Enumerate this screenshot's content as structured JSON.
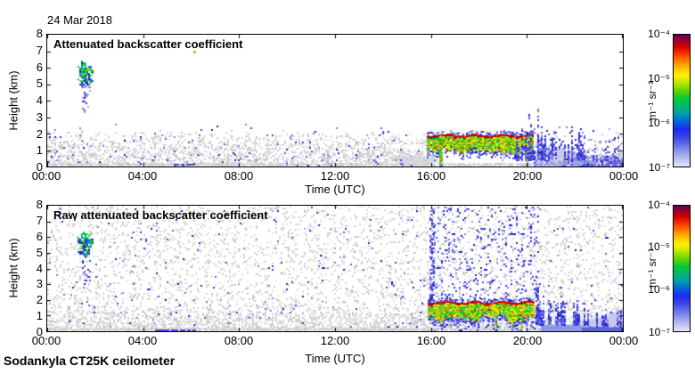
{
  "figure": {
    "date": "24 Mar 2018",
    "footer": "Sodankyla CT25K ceilometer",
    "background": "#ffffff"
  },
  "chart_data": {
    "type": "heatmap",
    "instrument": "Sodankyla CT25K ceilometer",
    "date": "24 Mar 2018",
    "x": {
      "label": "Time (UTC)",
      "ticks": [
        "00:00",
        "04:00",
        "08:00",
        "12:00",
        "16:00",
        "20:00",
        "00:00"
      ],
      "hours": [
        0,
        4,
        8,
        12,
        16,
        20,
        24
      ],
      "lim_hours": [
        0,
        24
      ]
    },
    "y": {
      "label": "Height (km)",
      "ticks": [
        0,
        1,
        2,
        3,
        4,
        5,
        6,
        7,
        8
      ],
      "lim": [
        0,
        8
      ]
    },
    "colorbar": {
      "unit": "m⁻¹ sr⁻¹",
      "ticks": [
        "10⁻⁴",
        "10⁻⁵",
        "10⁻⁶",
        "10⁻⁷"
      ],
      "scale": "log",
      "range": [
        1e-07,
        0.0001
      ],
      "gradient": [
        {
          "p": 0,
          "c": "#5a005a"
        },
        {
          "p": 4,
          "c": "#960032"
        },
        {
          "p": 9,
          "c": "#d20000"
        },
        {
          "p": 15,
          "c": "#ff3c00"
        },
        {
          "p": 21,
          "c": "#ff8c00"
        },
        {
          "p": 26,
          "c": "#ffc800"
        },
        {
          "p": 31,
          "c": "#fff000"
        },
        {
          "p": 37,
          "c": "#b4e600"
        },
        {
          "p": 43,
          "c": "#5ad200"
        },
        {
          "p": 49,
          "c": "#00c83c"
        },
        {
          "p": 55,
          "c": "#00b478"
        },
        {
          "p": 60,
          "c": "#00a0aa"
        },
        {
          "p": 66,
          "c": "#0064dc"
        },
        {
          "p": 72,
          "c": "#1e28f0"
        },
        {
          "p": 78,
          "c": "#3c46e6"
        },
        {
          "p": 85,
          "c": "#6e7de8"
        },
        {
          "p": 92,
          "c": "#a8b0ee"
        },
        {
          "p": 100,
          "c": "#e6e6fa"
        }
      ]
    },
    "palettes": {
      "grays": [
        "#d2d2d2",
        "#dadada",
        "#cacaca",
        "#e2e2e2"
      ],
      "blues": [
        "#2020c8",
        "#3c3cdd",
        "#5a5ae6",
        "#8080ea",
        "#a0a0ee"
      ],
      "spikeblues": [
        "#2828c8",
        "#3c3cdc",
        "#5050e6",
        "#7878e8"
      ],
      "band": [
        "#c80000",
        "#a00000",
        "#dc1400",
        "#e63200"
      ],
      "cloudGreens": [
        "#28c828",
        "#46d232",
        "#00b446",
        "#78dc14",
        "#00c8a0"
      ],
      "cloudBlues": [
        "#2832dc",
        "#1e1ec8",
        "#3c50e6",
        "#1464d2"
      ]
    },
    "panels": [
      {
        "title": "Attenuated backscatter coefficient",
        "seed": 42,
        "features": [
          {
            "type": "haze",
            "t0": 14.6,
            "t1": 16.1,
            "base": 0.9,
            "amp": 0.45,
            "color": "#d8d8ec"
          },
          {
            "type": "speckle",
            "t0": 0,
            "t1": 16.3,
            "z0": 0,
            "z1": 2.3,
            "d0": 0.5,
            "d1": 0,
            "pow": 2.2,
            "colors": "grays"
          },
          {
            "type": "speckle",
            "t0": 0,
            "t1": 24,
            "z0": 0,
            "z1": 0.18,
            "d0": 0.85,
            "d1": 0.85,
            "colors": "grays"
          },
          {
            "type": "speckle",
            "t0": 0,
            "t1": 16.3,
            "z0": 0.1,
            "z1": 2.7,
            "d0": 0.05,
            "d1": 0,
            "pow": 1.6,
            "colors": "blues"
          },
          {
            "type": "hline",
            "t0": 5.3,
            "t1": 6.1,
            "z": 0.12,
            "color": "#4646dc"
          },
          {
            "type": "blob",
            "t0": 1.25,
            "t1": 1.9,
            "z0": 4.85,
            "z1": 6.35,
            "colors": "cloud"
          },
          {
            "type": "speckle",
            "t0": 1.45,
            "t1": 1.8,
            "z0": 3.0,
            "z1": 4.85,
            "d0": 0.1,
            "d1": 0.3,
            "colors": "blues"
          },
          {
            "type": "dot",
            "t": 6.1,
            "z": 7.0,
            "color": "#a0dc00"
          },
          {
            "type": "precip",
            "t0": 15.85,
            "t1": 20.3,
            "zband": 1.85,
            "zbot": 0.35
          },
          {
            "type": "haze",
            "t0": 20.3,
            "t1": 24,
            "base": 1.15,
            "amp": 0.5,
            "color": "#c8c8ee"
          },
          {
            "type": "haze",
            "t0": 20.5,
            "t1": 24,
            "base": 0.5,
            "amp": 0.25,
            "color": "#9aa2e6"
          },
          {
            "type": "haze",
            "t0": 22.2,
            "t1": 24,
            "base": 0.3,
            "amp": 0.12,
            "color": "#6a6ad8"
          },
          {
            "type": "speckle",
            "t0": 20.3,
            "t1": 24,
            "z0": 0,
            "z1": 2.2,
            "d0": 0.25,
            "d1": 0,
            "pow": 2,
            "colors": "grays"
          },
          {
            "type": "speckle",
            "t0": 20.3,
            "t1": 24,
            "z0": 0,
            "z1": 2.4,
            "d0": 0.22,
            "d1": 0.02,
            "pow": 1.5,
            "colors": "blues"
          },
          {
            "type": "spikes",
            "t0": 19.5,
            "t1": 22.4,
            "z0": 0.4,
            "h": 4.2,
            "n": 30
          },
          {
            "type": "spikes",
            "t0": 22.4,
            "t1": 23.9,
            "z0": 0.3,
            "h": 2.4,
            "n": 10
          }
        ]
      },
      {
        "title": "Raw attenuated backscatter coefficient",
        "seed": 1337,
        "features": [
          {
            "type": "speckle",
            "t0": 0,
            "t1": 24,
            "z0": 0,
            "z1": 7.95,
            "d0": 0.17,
            "d1": 0.13,
            "colors": "grays"
          },
          {
            "type": "speckle",
            "t0": 0,
            "t1": 24,
            "z0": 0,
            "z1": 1.8,
            "d0": 0.45,
            "d1": 0,
            "pow": 2,
            "colors": "grays"
          },
          {
            "type": "speckle",
            "t0": 0,
            "t1": 24,
            "z0": 0.1,
            "z1": 7.9,
            "d0": 0.02,
            "d1": 0.012,
            "colors": "blues"
          },
          {
            "type": "speckle",
            "t0": 0,
            "t1": 24,
            "z0": 0,
            "z1": 0.18,
            "d0": 0.9,
            "d1": 0.9,
            "colors": "grays"
          },
          {
            "type": "hline",
            "t0": 4.5,
            "t1": 6.2,
            "z": 0.1,
            "color": "#4646dc"
          },
          {
            "type": "blob",
            "t0": 1.25,
            "t1": 1.9,
            "z0": 4.85,
            "z1": 6.35,
            "colors": "cloud"
          },
          {
            "type": "speckle",
            "t0": 1.45,
            "t1": 1.8,
            "z0": 3.0,
            "z1": 4.85,
            "d0": 0.1,
            "d1": 0.3,
            "colors": "blues"
          },
          {
            "type": "dot",
            "t": 6.05,
            "z": 7.45,
            "color": "#50c850"
          },
          {
            "type": "speckle",
            "t0": 15.95,
            "t1": 16.15,
            "z0": 0,
            "z1": 7.7,
            "d0": 0.5,
            "d1": 0.45,
            "colors": "blues"
          },
          {
            "type": "speckle",
            "t0": 16.0,
            "t1": 20.55,
            "z0": 0,
            "z1": 7.9,
            "d0": 0.16,
            "d1": 0.1,
            "colors": "blues"
          },
          {
            "type": "precip",
            "t0": 15.9,
            "t1": 20.35,
            "zband": 1.8,
            "zbot": 0.25
          },
          {
            "type": "haze",
            "t0": 20.6,
            "t1": 24,
            "base": 0.95,
            "amp": 0.4,
            "color": "#c8c8ee"
          },
          {
            "type": "haze",
            "t0": 20.6,
            "t1": 24,
            "base": 0.42,
            "amp": 0.15,
            "color": "#8c96e6"
          },
          {
            "type": "haze",
            "t0": 22.3,
            "t1": 24,
            "base": 0.28,
            "amp": 0.1,
            "color": "#5a64d2"
          },
          {
            "type": "spikes",
            "t0": 20.35,
            "t1": 22.7,
            "z0": 0.4,
            "h": 3.9,
            "n": 26
          },
          {
            "type": "spikes",
            "t0": 22.7,
            "t1": 23.95,
            "z0": 0.3,
            "h": 1.9,
            "n": 9
          },
          {
            "type": "speckle",
            "t0": 23.75,
            "t1": 23.98,
            "z0": 0,
            "z1": 1.5,
            "d0": 0.5,
            "d1": 0.3,
            "colors": "blues"
          }
        ]
      }
    ],
    "annotations": {
      "cloud_layer": "liquid cloud 01:15-01:55 UTC at 4.9-6.3 km",
      "precip_event": "strong backscatter layer ~1.8 km with precipitation below, 16:00-20:20 UTC",
      "post_event": "blue noise spikes to ~4 km and low-level haze 20:20-24:00 UTC"
    }
  }
}
